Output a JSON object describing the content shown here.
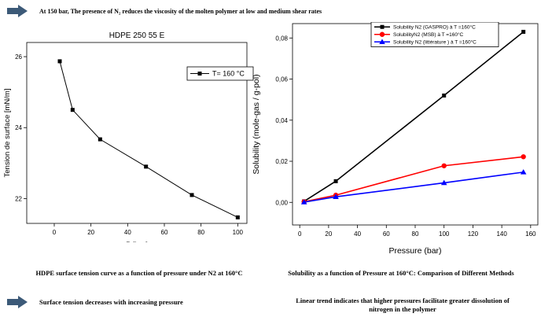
{
  "headline": "At 150 bar, The presence of N₂ reduces the viscosity of the molten polymer at low and medium shear rates",
  "left_caption": "HDPE surface tension curve as a function of pressure under N2 at 160°C",
  "right_caption": "Solubility  as a function of Pressure at 160°C: Comparison of Different Methods",
  "bullet_left": "Surface tension decreases with increasing pressure",
  "bullet_right": "Linear trend indicates that higher pressures facilitate greater dissolution of nitrogen in the polymer",
  "colors": {
    "arrow": "#3c5a78"
  },
  "chart_data": [
    {
      "type": "line",
      "title": "HDPE 250 55 E",
      "xlabel": "P [bar]",
      "ylabel": "Tension de surface [mN/m]",
      "xlim": [
        -15,
        105
      ],
      "ylim": [
        21.3,
        26.4
      ],
      "xticks": [
        "0",
        "20",
        "40",
        "60",
        "80",
        "100"
      ],
      "xtick_values": [
        0,
        20,
        40,
        60,
        80,
        100
      ],
      "yticks": [
        "22",
        "24",
        "26"
      ],
      "ytick_values": [
        22,
        24,
        26
      ],
      "legend_position": "top-right",
      "series": [
        {
          "name": "T= 160 °C",
          "color": "#000000",
          "marker": "square",
          "x": [
            3,
            10,
            25,
            50,
            75,
            100
          ],
          "y": [
            25.87,
            24.5,
            23.67,
            22.9,
            22.1,
            21.47
          ]
        }
      ]
    },
    {
      "type": "line",
      "title": "",
      "xlabel": "Pressure (bar)",
      "ylabel": "Solubility (mole-gas / g-pol)",
      "xlim": [
        -5,
        165
      ],
      "ylim": [
        -0.011,
        0.087
      ],
      "xticks": [
        "0",
        "20",
        "40",
        "60",
        "80",
        "100",
        "120",
        "140",
        "160"
      ],
      "xtick_values": [
        0,
        20,
        40,
        60,
        80,
        100,
        120,
        140,
        160
      ],
      "yticks": [
        "0,00",
        "0,02",
        "0,04",
        "0,06",
        "0,08"
      ],
      "ytick_values": [
        0,
        0.02,
        0.04,
        0.06,
        0.08
      ],
      "legend_position": "top-right",
      "series": [
        {
          "name": "Solubility N2  (GASPRO) à T =160°C",
          "color": "#000000",
          "marker": "square",
          "x": [
            3,
            25,
            100,
            155
          ],
          "y": [
            0.0005,
            0.0103,
            0.052,
            0.083
          ]
        },
        {
          "name": "SolubilityN2  (MSB) à T =160°C",
          "color": "#ff0000",
          "marker": "circle",
          "x": [
            3,
            25,
            100,
            155
          ],
          "y": [
            0.0003,
            0.0035,
            0.0178,
            0.0222
          ]
        },
        {
          "name": "Solubility N2  (littérature ) à T =160°C",
          "color": "#0000ff",
          "marker": "triangle",
          "x": [
            3,
            25,
            100,
            155
          ],
          "y": [
            0.0001,
            0.0027,
            0.0095,
            0.0147
          ]
        }
      ]
    }
  ]
}
